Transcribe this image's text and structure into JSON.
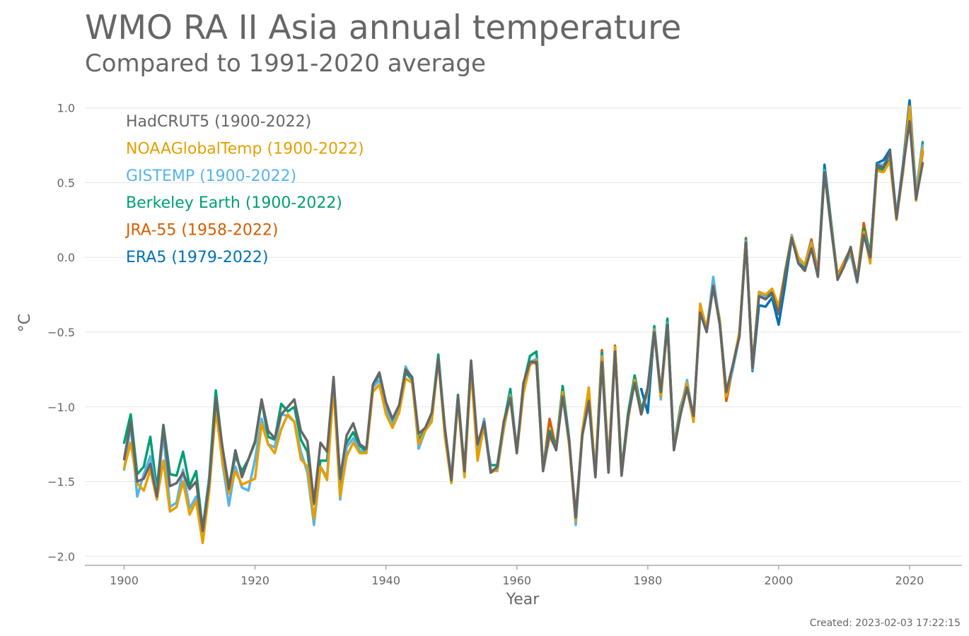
{
  "chart_data": {
    "type": "line",
    "title": "WMO RA II Asia annual temperature",
    "subtitle": "Compared to 1991-2020 average",
    "xlabel": "Year",
    "ylabel": "°C",
    "xlim": [
      1894,
      2028
    ],
    "ylim": [
      -2.06,
      1.06
    ],
    "xticks": [
      1900,
      1920,
      1940,
      1960,
      1980,
      2000,
      2020
    ],
    "yticks": [
      1.0,
      0.5,
      0.0,
      -0.5,
      -1.0,
      -1.5,
      -2.0
    ],
    "ytick_labels": [
      "1.0",
      "0.5",
      "0.0",
      "−0.5",
      "−1.0",
      "−1.5",
      "−2.0"
    ],
    "grid": "horizontal",
    "legend_position": "top-left",
    "created": "Created: 2023-02-03 17:22:15",
    "series": [
      {
        "name": "ERA5 (1979-2022)",
        "color": "#0072b2",
        "x_start": 1979,
        "values": [
          -0.88,
          -1.04,
          -0.48,
          -0.94,
          -0.42,
          -1.28,
          -1.05,
          -0.87,
          -1.08,
          -0.36,
          -0.48,
          -0.2,
          -0.44,
          -0.94,
          -0.73,
          -0.52,
          0.12,
          -0.76,
          -0.32,
          -0.33,
          -0.27,
          -0.45,
          -0.18,
          0.13,
          -0.01,
          -0.07,
          0.08,
          -0.11,
          0.62,
          0.24,
          -0.13,
          -0.05,
          0.06,
          -0.15,
          0.21,
          0.02,
          0.63,
          0.65,
          0.72,
          0.28,
          0.62,
          1.05,
          0.43,
          0.71
        ]
      },
      {
        "name": "JRA-55 (1958-2022)",
        "color": "#d55e00",
        "x_start": 1958,
        "values": [
          -1.1,
          -0.92,
          -1.28,
          -0.88,
          -0.7,
          -0.71,
          -1.42,
          -1.08,
          -1.28,
          -0.9,
          -1.25,
          -1.72,
          -1.18,
          -0.96,
          -1.44,
          -0.62,
          -1.38,
          -0.59,
          -1.42,
          -1.05,
          -0.83,
          -1.05,
          -0.88,
          -0.5,
          -0.92,
          -0.45,
          -1.28,
          -1.02,
          -0.87,
          -1.1,
          -0.33,
          -0.48,
          -0.18,
          -0.43,
          -0.96,
          -0.74,
          -0.51,
          0.13,
          -0.72,
          -0.25,
          -0.26,
          -0.21,
          -0.33,
          -0.1,
          0.14,
          -0.02,
          -0.05,
          0.12,
          -0.1,
          0.57,
          0.22,
          -0.12,
          -0.03,
          0.06,
          -0.14,
          0.23,
          0.01,
          0.59,
          0.59,
          0.67,
          0.26,
          0.57,
          0.98,
          0.38,
          0.7
        ]
      },
      {
        "name": "Berkeley Earth (1900-2022)",
        "color": "#009e73",
        "x_start": 1900,
        "values": [
          -1.24,
          -1.05,
          -1.45,
          -1.4,
          -1.2,
          -1.55,
          -1.12,
          -1.45,
          -1.46,
          -1.3,
          -1.53,
          -1.43,
          -1.82,
          -1.47,
          -0.89,
          -1.27,
          -1.53,
          -1.33,
          -1.43,
          -1.35,
          -1.24,
          -0.96,
          -1.2,
          -1.22,
          -0.98,
          -1.03,
          -1.0,
          -1.22,
          -1.3,
          -1.65,
          -1.36,
          -1.36,
          -0.87,
          -1.52,
          -1.24,
          -1.17,
          -1.26,
          -1.3,
          -0.86,
          -0.78,
          -0.98,
          -1.1,
          -1.02,
          -0.77,
          -0.82,
          -1.22,
          -1.15,
          -1.05,
          -0.65,
          -1.15,
          -1.48,
          -0.92,
          -1.42,
          -0.7,
          -1.28,
          -1.14,
          -1.39,
          -1.39,
          -1.11,
          -0.88,
          -1.3,
          -0.85,
          -0.66,
          -0.63,
          -1.41,
          -1.16,
          -1.27,
          -0.86,
          -1.22,
          -1.76,
          -1.16,
          -0.95,
          -1.45,
          -0.64,
          -1.41,
          -0.6,
          -1.43,
          -1.04,
          -0.79,
          -1.02,
          -0.88,
          -0.46,
          -0.92,
          -0.41,
          -1.26,
          -1.0,
          -0.85,
          -1.08,
          -0.35,
          -0.47,
          -0.17,
          -0.42,
          -0.9,
          -0.72,
          -0.51,
          0.12,
          -0.73,
          -0.25,
          -0.27,
          -0.22,
          -0.35,
          -0.09,
          0.14,
          -0.0,
          -0.07,
          0.08,
          -0.11,
          0.59,
          0.23,
          -0.13,
          -0.04,
          0.06,
          -0.15,
          0.19,
          0.02,
          0.61,
          0.58,
          0.69,
          0.27,
          0.6,
          0.99,
          0.43,
          0.77
        ]
      },
      {
        "name": "GISTEMP (1900-2022)",
        "color": "#56b4e9",
        "x_start": 1900,
        "values": [
          -1.42,
          -1.12,
          -1.6,
          -1.45,
          -1.33,
          -1.58,
          -1.18,
          -1.67,
          -1.64,
          -1.42,
          -1.68,
          -1.6,
          -1.85,
          -1.48,
          -0.96,
          -1.37,
          -1.66,
          -1.4,
          -1.54,
          -1.56,
          -1.35,
          -1.08,
          -1.25,
          -1.27,
          -1.05,
          -1.06,
          -1.1,
          -1.3,
          -1.44,
          -1.79,
          -1.4,
          -1.47,
          -0.83,
          -1.62,
          -1.27,
          -1.21,
          -1.29,
          -1.31,
          -0.87,
          -0.82,
          -1.02,
          -1.12,
          -1.01,
          -0.73,
          -0.81,
          -1.28,
          -1.16,
          -1.07,
          -0.68,
          -1.18,
          -1.48,
          -0.95,
          -1.45,
          -0.72,
          -1.3,
          -1.08,
          -1.42,
          -1.43,
          -1.15,
          -0.92,
          -1.3,
          -0.86,
          -0.7,
          -0.68,
          -1.42,
          -1.18,
          -1.29,
          -0.92,
          -1.24,
          -1.79,
          -1.19,
          -0.98,
          -1.47,
          -0.66,
          -1.43,
          -0.62,
          -1.45,
          -1.08,
          -0.82,
          -1.05,
          -0.9,
          -0.48,
          -0.95,
          -0.44,
          -1.27,
          -1.02,
          -0.82,
          -1.08,
          -0.37,
          -0.49,
          -0.13,
          -0.44,
          -0.92,
          -0.75,
          -0.53,
          0.11,
          -0.75,
          -0.24,
          -0.27,
          -0.25,
          -0.37,
          -0.11,
          0.15,
          -0.02,
          -0.05,
          0.1,
          -0.12,
          0.58,
          0.2,
          -0.14,
          -0.05,
          0.02,
          -0.17,
          0.16,
          0.01,
          0.62,
          0.62,
          0.68,
          0.29,
          0.6,
          1.0,
          0.44,
          0.75
        ]
      },
      {
        "name": "NOAAGlobalTemp (1900-2022)",
        "color": "#e69f00",
        "x_start": 1900,
        "values": [
          -1.41,
          -1.24,
          -1.51,
          -1.56,
          -1.42,
          -1.62,
          -1.36,
          -1.7,
          -1.67,
          -1.5,
          -1.72,
          -1.63,
          -1.91,
          -1.56,
          -1.02,
          -1.36,
          -1.58,
          -1.43,
          -1.52,
          -1.5,
          -1.48,
          -1.11,
          -1.25,
          -1.31,
          -1.15,
          -1.05,
          -1.1,
          -1.35,
          -1.4,
          -1.75,
          -1.4,
          -1.49,
          -0.87,
          -1.6,
          -1.33,
          -1.24,
          -1.31,
          -1.31,
          -0.9,
          -0.85,
          -1.05,
          -1.14,
          -1.04,
          -0.81,
          -0.84,
          -1.25,
          -1.16,
          -1.1,
          -0.68,
          -1.2,
          -1.51,
          -0.96,
          -1.47,
          -0.75,
          -1.36,
          -1.12,
          -1.44,
          -1.42,
          -1.14,
          -0.93,
          -1.31,
          -0.91,
          -0.72,
          -0.69,
          -1.42,
          -1.2,
          -1.28,
          -0.9,
          -1.26,
          -1.76,
          -1.16,
          -0.87,
          -1.46,
          -0.67,
          -1.43,
          -0.6,
          -1.45,
          -1.08,
          -0.82,
          -1.05,
          -0.89,
          -0.49,
          -0.93,
          -0.46,
          -1.28,
          -1.03,
          -0.84,
          -1.1,
          -0.31,
          -0.48,
          -0.19,
          -0.43,
          -0.93,
          -0.72,
          -0.5,
          0.1,
          -0.74,
          -0.23,
          -0.25,
          -0.21,
          -0.33,
          -0.1,
          0.14,
          -0.0,
          -0.05,
          0.09,
          -0.12,
          0.56,
          0.21,
          -0.13,
          -0.04,
          0.04,
          -0.15,
          0.17,
          -0.04,
          0.58,
          0.57,
          0.64,
          0.25,
          0.58,
          1.01,
          0.38,
          0.73
        ]
      },
      {
        "name": "HadCRUT5 (1900-2022)",
        "color": "#666666",
        "x_start": 1900,
        "values": [
          -1.35,
          -1.1,
          -1.5,
          -1.48,
          -1.38,
          -1.6,
          -1.13,
          -1.53,
          -1.51,
          -1.44,
          -1.55,
          -1.5,
          -1.83,
          -1.5,
          -0.94,
          -1.26,
          -1.55,
          -1.29,
          -1.47,
          -1.35,
          -1.23,
          -0.95,
          -1.16,
          -1.21,
          -1.05,
          -1.0,
          -0.95,
          -1.16,
          -1.23,
          -1.64,
          -1.24,
          -1.3,
          -0.8,
          -1.48,
          -1.19,
          -1.11,
          -1.25,
          -1.28,
          -0.85,
          -0.77,
          -0.97,
          -1.08,
          -0.99,
          -0.75,
          -0.8,
          -1.18,
          -1.14,
          -1.04,
          -0.68,
          -1.14,
          -1.49,
          -0.93,
          -1.43,
          -0.69,
          -1.25,
          -1.1,
          -1.44,
          -1.4,
          -1.1,
          -0.94,
          -1.31,
          -0.84,
          -0.7,
          -0.7,
          -1.43,
          -1.18,
          -1.29,
          -0.93,
          -1.23,
          -1.74,
          -1.19,
          -0.96,
          -1.47,
          -0.7,
          -1.44,
          -0.63,
          -1.46,
          -1.06,
          -0.84,
          -1.05,
          -0.87,
          -0.5,
          -0.9,
          -0.45,
          -1.29,
          -1.05,
          -0.87,
          -1.06,
          -0.37,
          -0.5,
          -0.19,
          -0.45,
          -0.9,
          -0.72,
          -0.53,
          0.1,
          -0.74,
          -0.26,
          -0.28,
          -0.24,
          -0.38,
          -0.11,
          0.13,
          -0.04,
          -0.09,
          0.06,
          -0.13,
          0.57,
          0.2,
          -0.15,
          -0.06,
          0.07,
          -0.16,
          0.15,
          0.0,
          0.62,
          0.6,
          0.71,
          0.26,
          0.6,
          0.91,
          0.39,
          0.63
        ]
      }
    ],
    "legend_order": [
      "HadCRUT5 (1900-2022)",
      "NOAAGlobalTemp (1900-2022)",
      "GISTEMP (1900-2022)",
      "Berkeley Earth (1900-2022)",
      "JRA-55 (1958-2022)",
      "ERA5 (1979-2022)"
    ]
  }
}
